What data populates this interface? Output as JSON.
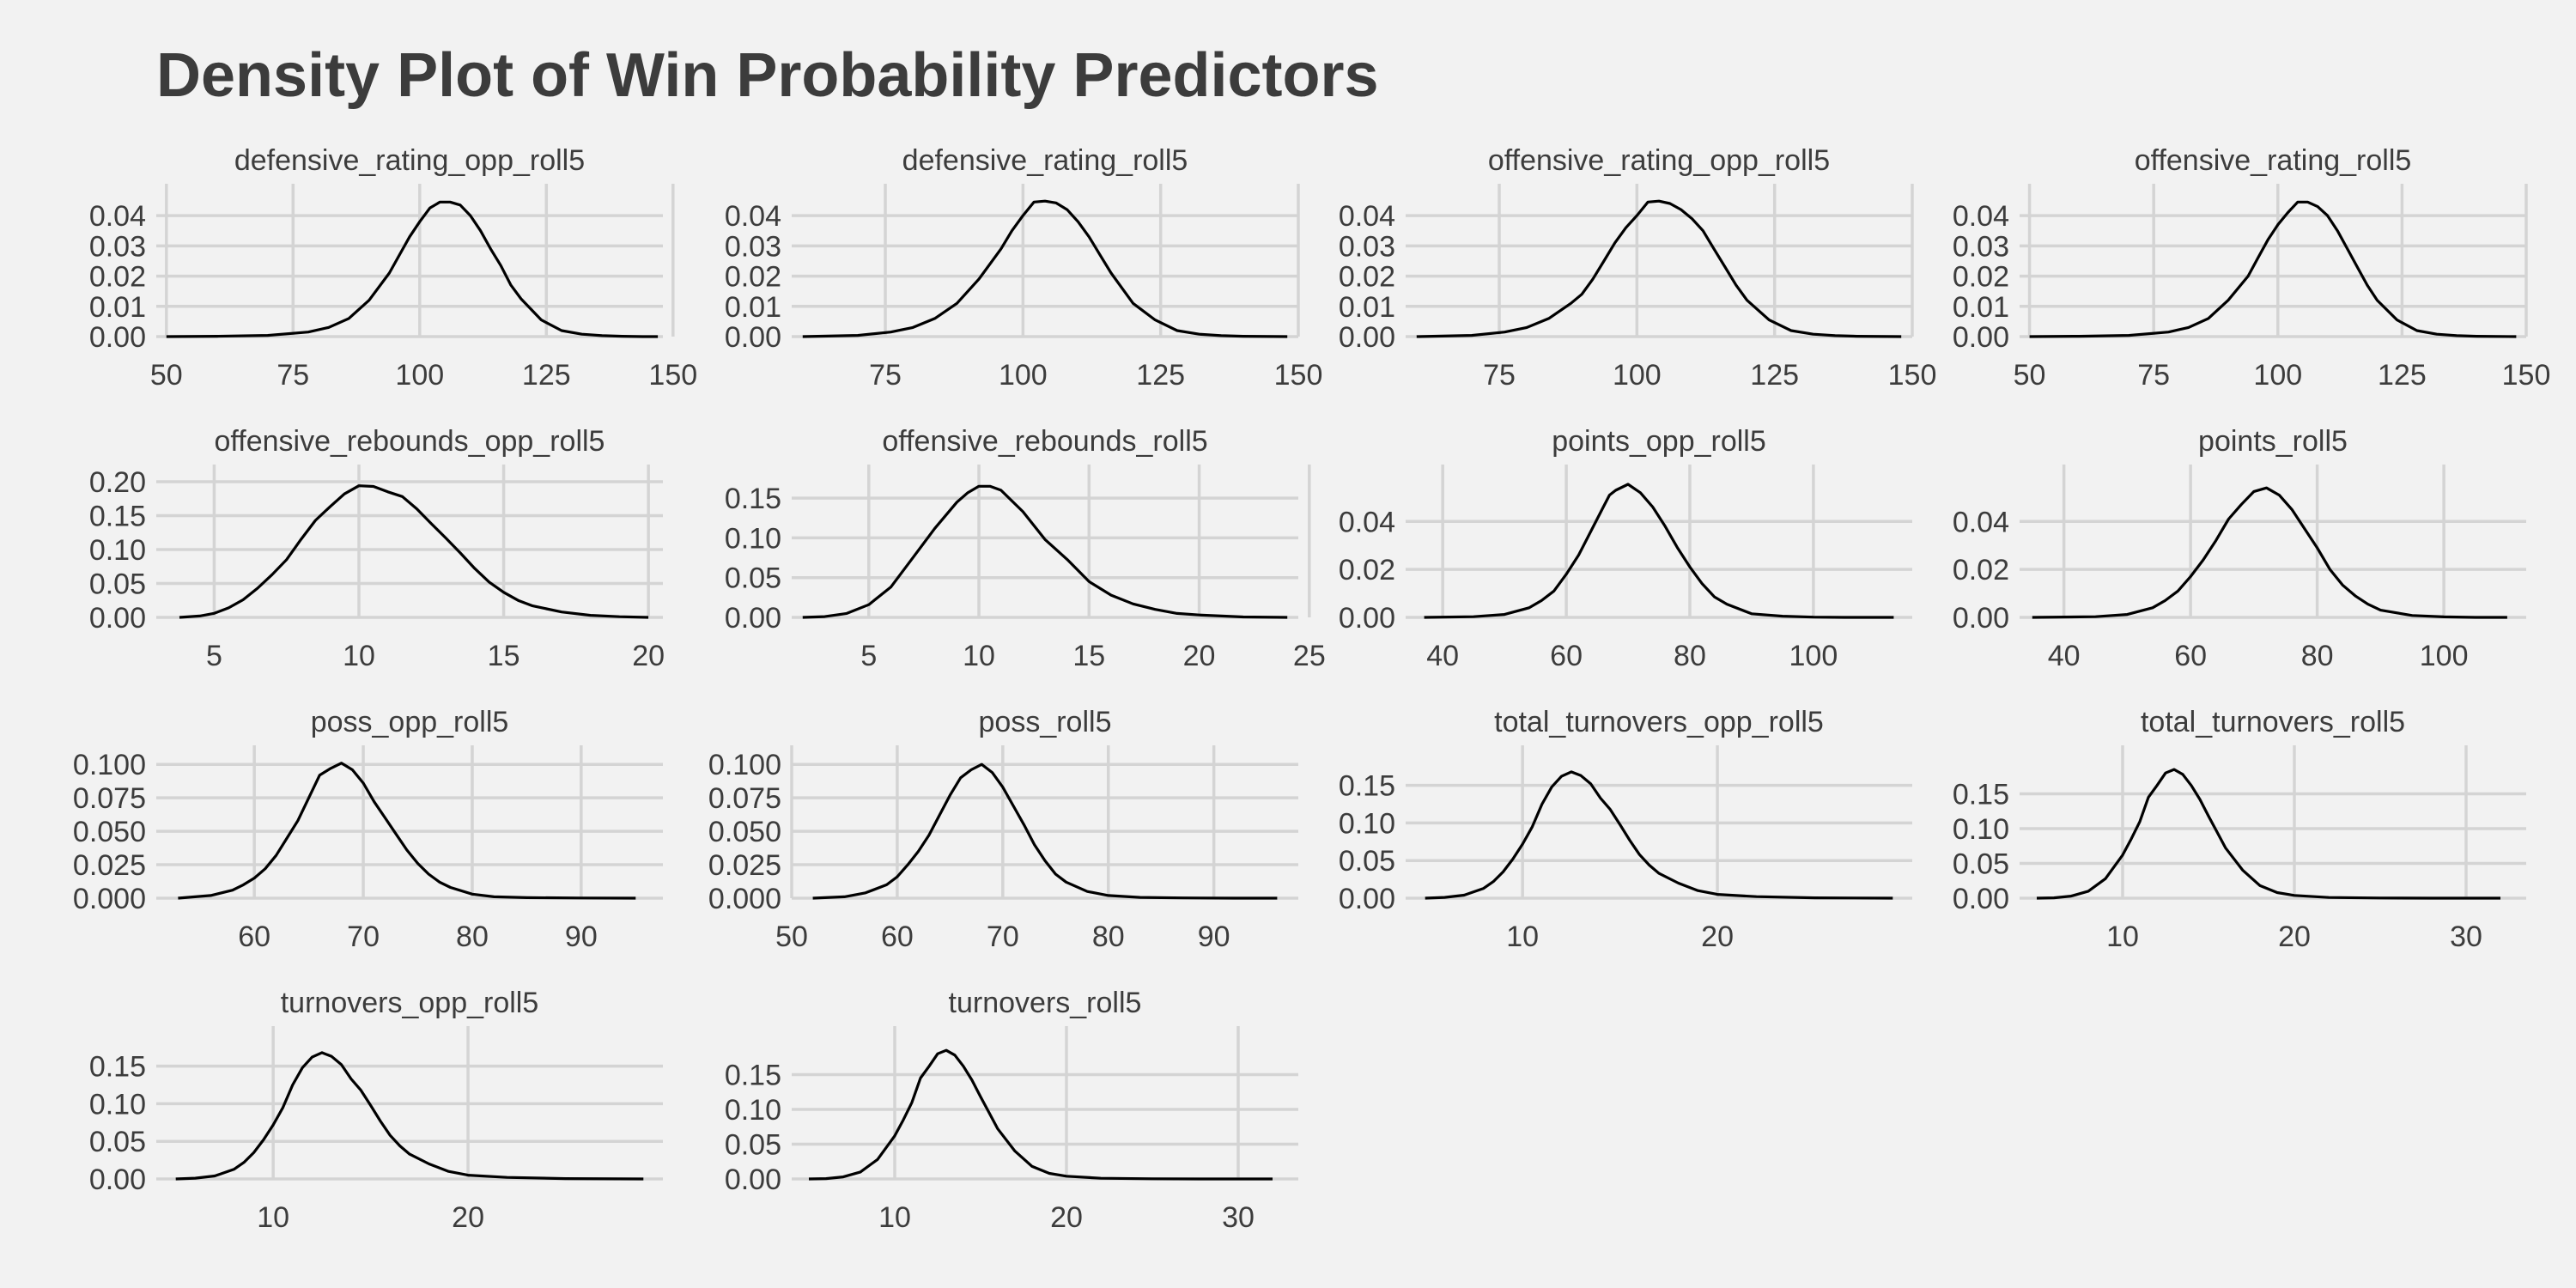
{
  "title": "Density Plot of Win Probability Predictors",
  "colors": {
    "background": "#f2f2f2",
    "grid": "#d4d4d4",
    "line": "#000000",
    "text": "#3c3c3c"
  },
  "chart_data": [
    {
      "type": "line",
      "title": "defensive_rating_opp_roll5",
      "xlim": [
        48,
        148
      ],
      "ylim": [
        0,
        0.046
      ],
      "grid": true,
      "xticks": [
        50,
        75,
        100,
        125,
        150
      ],
      "yticks": [
        0,
        0.01,
        0.02,
        0.03,
        0.04
      ],
      "xtick_labels": [
        "50",
        "75",
        "100",
        "125",
        "150"
      ],
      "ytick_labels": [
        "0.00",
        "0.01",
        "0.02",
        "0.03",
        "0.04"
      ],
      "x": [
        50,
        60,
        70,
        78,
        82,
        86,
        90,
        94,
        96,
        98,
        100,
        102,
        104,
        106,
        108,
        110,
        112,
        114,
        116,
        118,
        120,
        124,
        128,
        132,
        136,
        140,
        144,
        147
      ],
      "y": [
        0,
        0.0001,
        0.0004,
        0.0015,
        0.003,
        0.006,
        0.012,
        0.021,
        0.027,
        0.033,
        0.038,
        0.0425,
        0.0445,
        0.0445,
        0.0435,
        0.04,
        0.035,
        0.029,
        0.0235,
        0.017,
        0.0125,
        0.0055,
        0.002,
        0.0008,
        0.0003,
        0.0001,
        0,
        0
      ]
    },
    {
      "type": "line",
      "title": "defensive_rating_roll5",
      "xlim": [
        58,
        150
      ],
      "ylim": [
        0,
        0.046
      ],
      "grid": true,
      "xticks": [
        75,
        100,
        125,
        150
      ],
      "yticks": [
        0,
        0.01,
        0.02,
        0.03,
        0.04
      ],
      "xtick_labels": [
        "75",
        "100",
        "125",
        "150"
      ],
      "ytick_labels": [
        "0.00",
        "0.01",
        "0.02",
        "0.03",
        "0.04"
      ],
      "x": [
        60,
        70,
        76,
        80,
        84,
        88,
        92,
        96,
        98,
        100,
        102,
        104,
        106,
        108,
        110,
        112,
        114,
        116,
        118,
        120,
        124,
        128,
        132,
        136,
        140,
        148
      ],
      "y": [
        0,
        0.0004,
        0.0015,
        0.003,
        0.006,
        0.011,
        0.019,
        0.029,
        0.035,
        0.04,
        0.0445,
        0.0448,
        0.0442,
        0.042,
        0.038,
        0.033,
        0.027,
        0.021,
        0.016,
        0.011,
        0.0055,
        0.002,
        0.0008,
        0.0003,
        0.0001,
        0
      ]
    },
    {
      "type": "line",
      "title": "offensive_rating_opp_roll5",
      "xlim": [
        58,
        150
      ],
      "ylim": [
        0,
        0.046
      ],
      "grid": true,
      "xticks": [
        75,
        100,
        125,
        150
      ],
      "yticks": [
        0,
        0.01,
        0.02,
        0.03,
        0.04
      ],
      "xtick_labels": [
        "75",
        "100",
        "125",
        "150"
      ],
      "ytick_labels": [
        "0.00",
        "0.01",
        "0.02",
        "0.03",
        "0.04"
      ],
      "x": [
        60,
        70,
        76,
        80,
        84,
        88,
        90,
        92,
        94,
        96,
        98,
        100,
        102,
        104,
        106,
        108,
        110,
        112,
        114,
        116,
        118,
        120,
        124,
        128,
        132,
        136,
        140,
        148
      ],
      "y": [
        0,
        0.0004,
        0.0015,
        0.003,
        0.006,
        0.011,
        0.014,
        0.019,
        0.025,
        0.031,
        0.036,
        0.04,
        0.0445,
        0.0448,
        0.044,
        0.042,
        0.039,
        0.035,
        0.029,
        0.023,
        0.017,
        0.012,
        0.0055,
        0.002,
        0.0008,
        0.0003,
        0.0001,
        0
      ]
    },
    {
      "type": "line",
      "title": "offensive_rating_roll5",
      "xlim": [
        48,
        150
      ],
      "ylim": [
        0,
        0.046
      ],
      "grid": true,
      "xticks": [
        50,
        75,
        100,
        125,
        150
      ],
      "yticks": [
        0,
        0.01,
        0.02,
        0.03,
        0.04
      ],
      "xtick_labels": [
        "50",
        "75",
        "100",
        "125",
        "150"
      ],
      "ytick_labels": [
        "0.00",
        "0.01",
        "0.02",
        "0.03",
        "0.04"
      ],
      "x": [
        50,
        60,
        70,
        78,
        82,
        86,
        90,
        94,
        96,
        98,
        100,
        102,
        104,
        106,
        108,
        110,
        112,
        114,
        116,
        118,
        120,
        124,
        128,
        132,
        136,
        140,
        148
      ],
      "y": [
        0,
        0.0001,
        0.0004,
        0.0015,
        0.003,
        0.006,
        0.012,
        0.02,
        0.026,
        0.032,
        0.037,
        0.041,
        0.0445,
        0.0445,
        0.043,
        0.04,
        0.035,
        0.029,
        0.023,
        0.017,
        0.012,
        0.0055,
        0.002,
        0.0008,
        0.0003,
        0.0001,
        0
      ]
    },
    {
      "type": "line",
      "title": "offensive_rebounds_opp_roll5",
      "xlim": [
        3,
        20.5
      ],
      "ylim": [
        0,
        0.205
      ],
      "grid": true,
      "xticks": [
        5,
        10,
        15,
        20
      ],
      "yticks": [
        0,
        0.05,
        0.1,
        0.15,
        0.2
      ],
      "xtick_labels": [
        "5",
        "10",
        "15",
        "20"
      ],
      "ytick_labels": [
        "0.00",
        "0.05",
        "0.10",
        "0.15",
        "0.20"
      ],
      "x": [
        3.8,
        4.5,
        5,
        5.5,
        6,
        6.5,
        7,
        7.5,
        8,
        8.5,
        9,
        9.5,
        10,
        10.5,
        11,
        11.5,
        12,
        12.5,
        13,
        13.5,
        14,
        14.5,
        15,
        15.5,
        16,
        17,
        18,
        19,
        20
      ],
      "y": [
        0,
        0.002,
        0.006,
        0.014,
        0.026,
        0.043,
        0.063,
        0.085,
        0.115,
        0.143,
        0.163,
        0.182,
        0.194,
        0.193,
        0.185,
        0.178,
        0.16,
        0.138,
        0.117,
        0.095,
        0.072,
        0.052,
        0.037,
        0.025,
        0.017,
        0.008,
        0.003,
        0.001,
        0
      ]
    },
    {
      "type": "line",
      "title": "offensive_rebounds_roll5",
      "xlim": [
        1.5,
        24.5
      ],
      "ylim": [
        0,
        0.175
      ],
      "grid": true,
      "xticks": [
        5,
        10,
        15,
        20,
        25
      ],
      "yticks": [
        0,
        0.05,
        0.1,
        0.15
      ],
      "xtick_labels": [
        "5",
        "10",
        "15",
        "20",
        "25"
      ],
      "ytick_labels": [
        "0.00",
        "0.05",
        "0.10",
        "0.15"
      ],
      "x": [
        2,
        3,
        4,
        5,
        6,
        7,
        8,
        9,
        9.5,
        10,
        10.5,
        11,
        12,
        13,
        14,
        15,
        16,
        17,
        18,
        19,
        20,
        22,
        24
      ],
      "y": [
        0,
        0.001,
        0.005,
        0.016,
        0.038,
        0.075,
        0.112,
        0.145,
        0.157,
        0.165,
        0.165,
        0.16,
        0.133,
        0.098,
        0.073,
        0.045,
        0.028,
        0.017,
        0.01,
        0.005,
        0.003,
        0.0005,
        0
      ]
    },
    {
      "type": "line",
      "title": "points_opp_roll5",
      "xlim": [
        34,
        116
      ],
      "ylim": [
        0,
        0.058
      ],
      "grid": true,
      "xticks": [
        40,
        60,
        80,
        100
      ],
      "yticks": [
        0,
        0.02,
        0.04
      ],
      "xtick_labels": [
        "40",
        "60",
        "80",
        "100"
      ],
      "ytick_labels": [
        "0.00",
        "0.02",
        "0.04"
      ],
      "x": [
        37,
        45,
        50,
        54,
        56,
        58,
        60,
        62,
        64,
        66,
        67,
        68,
        70,
        72,
        74,
        76,
        78,
        80,
        82,
        84,
        86,
        90,
        95,
        100,
        105,
        110,
        113
      ],
      "y": [
        0,
        0.0003,
        0.0012,
        0.004,
        0.007,
        0.011,
        0.018,
        0.026,
        0.036,
        0.046,
        0.051,
        0.053,
        0.0555,
        0.052,
        0.046,
        0.038,
        0.029,
        0.021,
        0.014,
        0.0085,
        0.0055,
        0.0015,
        0.0005,
        0.0001,
        0,
        0,
        0
      ]
    },
    {
      "type": "line",
      "title": "points_roll5",
      "xlim": [
        33,
        113
      ],
      "ylim": [
        0,
        0.058
      ],
      "grid": true,
      "xticks": [
        40,
        60,
        80,
        100
      ],
      "yticks": [
        0,
        0.02,
        0.04
      ],
      "xtick_labels": [
        "40",
        "60",
        "80",
        "100"
      ],
      "ytick_labels": [
        "0.00",
        "0.02",
        "0.04"
      ],
      "x": [
        35,
        45,
        50,
        54,
        56,
        58,
        60,
        62,
        64,
        66,
        68,
        70,
        72,
        74,
        76,
        78,
        80,
        82,
        84,
        86,
        88,
        90,
        95,
        100,
        105,
        110
      ],
      "y": [
        0,
        0.0003,
        0.0012,
        0.004,
        0.007,
        0.011,
        0.017,
        0.024,
        0.032,
        0.041,
        0.047,
        0.0525,
        0.054,
        0.051,
        0.045,
        0.037,
        0.029,
        0.02,
        0.0135,
        0.009,
        0.0055,
        0.003,
        0.0008,
        0.0002,
        0,
        0
      ]
    },
    {
      "type": "line",
      "title": "poss_opp_roll5",
      "xlim": [
        51,
        97.5
      ],
      "ylim": [
        0,
        0.104
      ],
      "grid": true,
      "xticks": [
        60,
        70,
        80,
        90
      ],
      "yticks": [
        0,
        0.025,
        0.05,
        0.075,
        0.1
      ],
      "xtick_labels": [
        "60",
        "70",
        "80",
        "90"
      ],
      "ytick_labels": [
        "0.000",
        "0.025",
        "0.050",
        "0.075",
        "0.100"
      ],
      "x": [
        53,
        56,
        58,
        59,
        60,
        61,
        62,
        63,
        64,
        65,
        66,
        67,
        68,
        69,
        70,
        71,
        72,
        73,
        74,
        75,
        76,
        77,
        78,
        80,
        82,
        85,
        90,
        95
      ],
      "y": [
        0,
        0.002,
        0.006,
        0.01,
        0.015,
        0.022,
        0.032,
        0.045,
        0.058,
        0.075,
        0.092,
        0.097,
        0.101,
        0.096,
        0.086,
        0.072,
        0.06,
        0.048,
        0.036,
        0.026,
        0.018,
        0.012,
        0.008,
        0.003,
        0.001,
        0.0004,
        0.0001,
        0
      ]
    },
    {
      "type": "line",
      "title": "poss_roll5",
      "xlim": [
        50,
        98
      ],
      "ylim": [
        0,
        0.104
      ],
      "grid": true,
      "xticks": [
        50,
        60,
        70,
        80,
        90
      ],
      "yticks": [
        0,
        0.025,
        0.05,
        0.075,
        0.1
      ],
      "xtick_labels": [
        "50",
        "60",
        "70",
        "80",
        "90"
      ],
      "ytick_labels": [
        "0.000",
        "0.025",
        "0.050",
        "0.075",
        "0.100"
      ],
      "x": [
        52,
        55,
        57,
        59,
        60,
        61,
        62,
        63,
        64,
        65,
        66,
        67,
        68,
        69,
        70,
        71,
        72,
        73,
        74,
        75,
        76,
        78,
        80,
        83,
        87,
        92,
        96
      ],
      "y": [
        0,
        0.001,
        0.004,
        0.01,
        0.016,
        0.025,
        0.035,
        0.047,
        0.062,
        0.077,
        0.09,
        0.096,
        0.1,
        0.094,
        0.083,
        0.069,
        0.055,
        0.04,
        0.028,
        0.018,
        0.012,
        0.005,
        0.002,
        0.0006,
        0.0002,
        0,
        0
      ]
    },
    {
      "type": "line",
      "title": "total_turnovers_opp_roll5",
      "xlim": [
        4,
        30
      ],
      "ylim": [
        0,
        0.185
      ],
      "grid": true,
      "xticks": [
        10,
        20
      ],
      "yticks": [
        0,
        0.05,
        0.1,
        0.15
      ],
      "xtick_labels": [
        "10",
        "20"
      ],
      "ytick_labels": [
        "0.00",
        "0.05",
        "0.10",
        "0.15"
      ],
      "x": [
        5,
        6,
        7,
        8,
        8.5,
        9,
        9.5,
        10,
        10.5,
        11,
        11.5,
        12,
        12.5,
        13,
        13.5,
        14,
        14.5,
        15,
        15.5,
        16,
        16.5,
        17,
        18,
        19,
        20,
        22,
        25,
        29
      ],
      "y": [
        0,
        0.001,
        0.004,
        0.013,
        0.022,
        0.035,
        0.052,
        0.072,
        0.095,
        0.125,
        0.148,
        0.162,
        0.168,
        0.163,
        0.152,
        0.133,
        0.118,
        0.098,
        0.077,
        0.058,
        0.044,
        0.033,
        0.02,
        0.01,
        0.005,
        0.002,
        0.0005,
        0
      ]
    },
    {
      "type": "line",
      "title": "total_turnovers_roll5",
      "xlim": [
        4,
        33.5
      ],
      "ylim": [
        0,
        0.2
      ],
      "grid": true,
      "xticks": [
        10,
        20,
        30
      ],
      "yticks": [
        0,
        0.05,
        0.1,
        0.15
      ],
      "xtick_labels": [
        "10",
        "20",
        "30"
      ],
      "ytick_labels": [
        "0.00",
        "0.05",
        "0.10",
        "0.15"
      ],
      "x": [
        5,
        6,
        7,
        8,
        9,
        10,
        10.5,
        11,
        11.5,
        12,
        12.5,
        13,
        13.5,
        14,
        14.5,
        15,
        15.5,
        16,
        17,
        18,
        19,
        20,
        22,
        25,
        28,
        32
      ],
      "y": [
        0,
        0.0005,
        0.003,
        0.01,
        0.028,
        0.062,
        0.085,
        0.11,
        0.145,
        0.162,
        0.18,
        0.185,
        0.178,
        0.162,
        0.142,
        0.118,
        0.095,
        0.072,
        0.04,
        0.018,
        0.008,
        0.004,
        0.001,
        0.0002,
        0,
        0
      ]
    },
    {
      "type": "line",
      "title": "turnovers_opp_roll5",
      "xlim": [
        4,
        30
      ],
      "ylim": [
        0,
        0.185
      ],
      "grid": true,
      "xticks": [
        10,
        20
      ],
      "yticks": [
        0,
        0.05,
        0.1,
        0.15
      ],
      "xtick_labels": [
        "10",
        "20"
      ],
      "ytick_labels": [
        "0.00",
        "0.05",
        "0.10",
        "0.15"
      ],
      "x": [
        5,
        6,
        7,
        8,
        8.5,
        9,
        9.5,
        10,
        10.5,
        11,
        11.5,
        12,
        12.5,
        13,
        13.5,
        14,
        14.5,
        15,
        15.5,
        16,
        16.5,
        17,
        18,
        19,
        20,
        22,
        25,
        29
      ],
      "y": [
        0,
        0.001,
        0.004,
        0.013,
        0.022,
        0.035,
        0.052,
        0.072,
        0.095,
        0.125,
        0.148,
        0.162,
        0.168,
        0.163,
        0.152,
        0.133,
        0.118,
        0.098,
        0.077,
        0.058,
        0.044,
        0.033,
        0.02,
        0.01,
        0.005,
        0.002,
        0.0005,
        0
      ]
    },
    {
      "type": "line",
      "title": "turnovers_roll5",
      "xlim": [
        4,
        33.5
      ],
      "ylim": [
        0,
        0.2
      ],
      "grid": true,
      "xticks": [
        10,
        20,
        30
      ],
      "yticks": [
        0,
        0.05,
        0.1,
        0.15
      ],
      "xtick_labels": [
        "10",
        "20",
        "30"
      ],
      "ytick_labels": [
        "0.00",
        "0.05",
        "0.10",
        "0.15"
      ],
      "x": [
        5,
        6,
        7,
        8,
        9,
        10,
        10.5,
        11,
        11.5,
        12,
        12.5,
        13,
        13.5,
        14,
        14.5,
        15,
        15.5,
        16,
        17,
        18,
        19,
        20,
        22,
        25,
        28,
        32
      ],
      "y": [
        0,
        0.0005,
        0.003,
        0.01,
        0.028,
        0.062,
        0.085,
        0.11,
        0.145,
        0.162,
        0.18,
        0.185,
        0.178,
        0.162,
        0.142,
        0.118,
        0.095,
        0.072,
        0.04,
        0.018,
        0.008,
        0.004,
        0.001,
        0.0002,
        0,
        0
      ]
    }
  ]
}
